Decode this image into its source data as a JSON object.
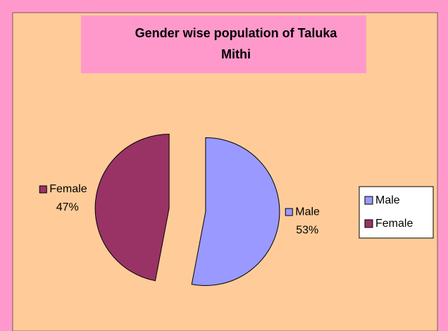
{
  "chart_data": {
    "type": "pie",
    "title": [
      "Gender wise population of Taluka",
      "Mithi"
    ],
    "categories": [
      "Male",
      "Female"
    ],
    "values": [
      53,
      47
    ],
    "value_labels": [
      "53%",
      "47%"
    ],
    "colors": [
      "#9999ff",
      "#993366"
    ],
    "legend": "right"
  }
}
